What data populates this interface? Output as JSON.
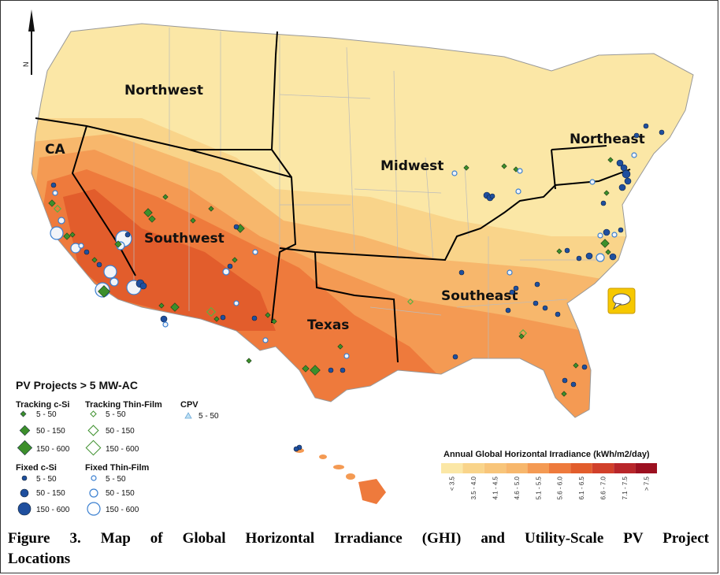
{
  "regions": [
    "Northwest",
    "CA",
    "Southwest",
    "Midwest",
    "Northeast",
    "Texas",
    "Southeast"
  ],
  "north_arrow": "N",
  "colors": {
    "ghi_low": "#fbe7a6",
    "ghi_3": "#f9d48a",
    "ghi_4": "#f7b76c",
    "ghi_5": "#f49a53",
    "ghi_6": "#ee7a3c",
    "ghi_7": "#e25d2c",
    "border": "#000000",
    "tracking_csi": "#3c8f2b",
    "fixed_csi": "#1f4f9e",
    "thin_film_ring": "#3a7fd0"
  },
  "legend": {
    "title": "PV Projects > 5 MW-AC",
    "tracking_csi": {
      "heading": "Tracking c-Si",
      "items": [
        "5 - 50",
        "50 - 150",
        "150 - 600"
      ]
    },
    "tracking_thin_film": {
      "heading": "Tracking Thin-Film",
      "items": [
        "5 - 50",
        "50 - 150",
        "150 - 600"
      ]
    },
    "cpv": {
      "heading": "CPV",
      "items": [
        "5 - 50"
      ]
    },
    "fixed_csi": {
      "heading": "Fixed c-Si",
      "items": [
        "5 - 50",
        "50 - 150",
        "150 - 600"
      ]
    },
    "fixed_thin_film": {
      "heading": "Fixed Thin-Film",
      "items": [
        "5 - 50",
        "50 - 150",
        "150 - 600"
      ]
    }
  },
  "irradiance_scale": {
    "title": "Annual Global Horizontal Irradiance (kWh/m2/day)",
    "bins": [
      "< 3.5",
      "3.5 - 4.0",
      "4.1 - 4.5",
      "4.6 - 5.0",
      "5.1 - 5.5",
      "5.6 - 6.0",
      "6.1 - 6.5",
      "6.6 - 7.0",
      "7.1 - 7.5",
      "> 7.5"
    ],
    "bin_colors": [
      "#fbe7a6",
      "#f9d48a",
      "#f8c57a",
      "#f7b76c",
      "#f49a53",
      "#ee7a3c",
      "#e25d2c",
      "#d1402a",
      "#b8262a",
      "#9c1020"
    ]
  },
  "caption": {
    "line1": "Figure 3. Map of Global Horizontal Irradiance (GHI) and Utility-Scale PV Project",
    "line2": "Locations"
  }
}
